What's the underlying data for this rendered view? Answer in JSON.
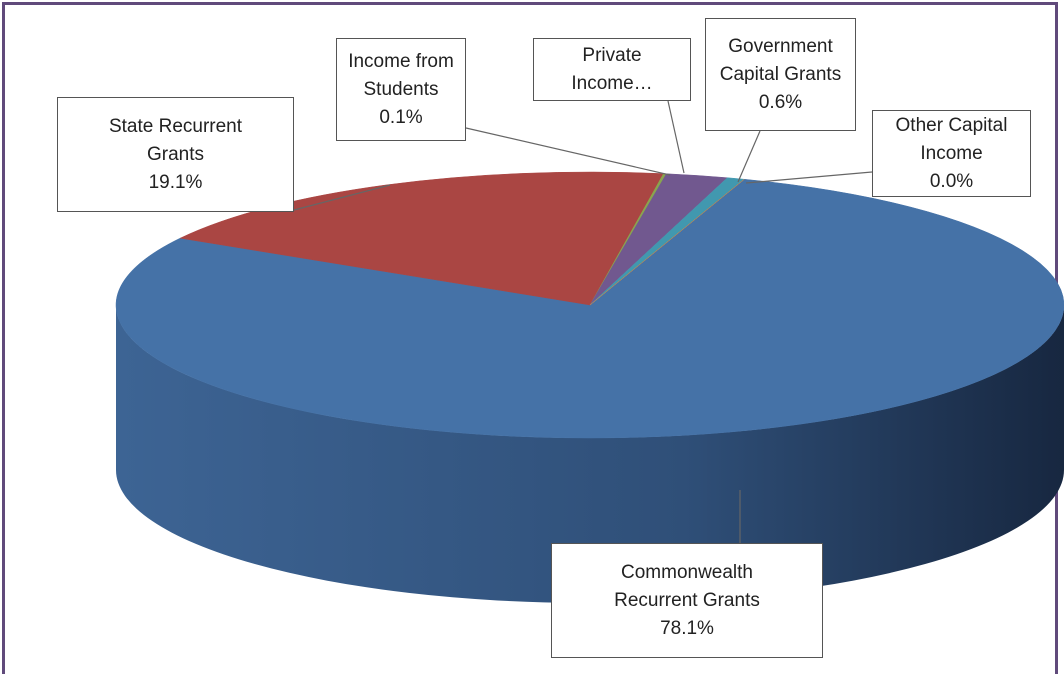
{
  "chart_data": {
    "type": "pie",
    "categories": [
      "Commonwealth Recurrent Grants",
      "State Recurrent Grants",
      "Income from Students",
      "Private Income…",
      "Government Capital Grants",
      "Other Capital Income"
    ],
    "values": [
      78.1,
      19.1,
      0.1,
      2.1,
      0.6,
      0.0
    ],
    "value_labels": [
      "78.1%",
      "19.1%",
      "0.1%",
      null,
      "0.6%",
      "0.0%"
    ],
    "colors": [
      "#4572a7",
      "#aa4643",
      "#89a54e",
      "#71588f",
      "#4198af",
      "#db843d"
    ]
  }
}
